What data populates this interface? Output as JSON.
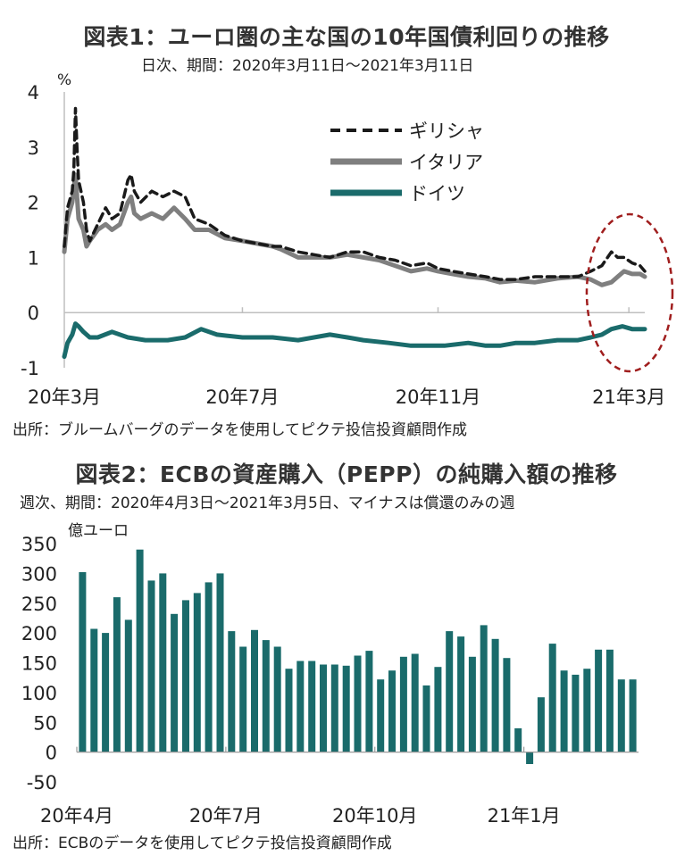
{
  "chart_data": [
    {
      "type": "line",
      "title": "図表1：ユーロ圏の主な国の10年国債利回りの推移",
      "subtitle": "日次、期間：2020年3月11日～2021年3月11日",
      "ylabel": "%",
      "ylim": [
        -1,
        4
      ],
      "yticks": [
        "4",
        "3",
        "2",
        "1",
        "0",
        "-1"
      ],
      "xlim": [
        "2020-03-11",
        "2021-03-11"
      ],
      "xticks": [
        {
          "date": "2020-03-11",
          "label": "20年3月"
        },
        {
          "date": "2020-07-01",
          "label": "20年7月"
        },
        {
          "date": "2020-11-01",
          "label": "20年11月"
        },
        {
          "date": "2021-03-01",
          "label": "21年3月"
        }
      ],
      "legend_position": "top-center",
      "annotation": "highlight-ellipse-around-2021-02-to-03",
      "source": "出所：ブルームバーグのデータを使用してピクテ投信投資顧問作成",
      "series": [
        {
          "name": "ギリシャ",
          "color": "#1a1a1a",
          "style": "dashed",
          "points": [
            [
              "2020-03-11",
              1.2
            ],
            [
              "2020-03-13",
              1.9
            ],
            [
              "2020-03-16",
              2.2
            ],
            [
              "2020-03-17",
              2.6
            ],
            [
              "2020-03-18",
              3.7
            ],
            [
              "2020-03-19",
              3.0
            ],
            [
              "2020-03-20",
              2.4
            ],
            [
              "2020-03-23",
              2.0
            ],
            [
              "2020-03-25",
              1.5
            ],
            [
              "2020-03-27",
              1.3
            ],
            [
              "2020-04-01",
              1.6
            ],
            [
              "2020-04-06",
              1.9
            ],
            [
              "2020-04-10",
              1.7
            ],
            [
              "2020-04-15",
              1.8
            ],
            [
              "2020-04-20",
              2.4
            ],
            [
              "2020-04-22",
              2.5
            ],
            [
              "2020-04-24",
              2.2
            ],
            [
              "2020-04-28",
              2.0
            ],
            [
              "2020-05-05",
              2.2
            ],
            [
              "2020-05-12",
              2.1
            ],
            [
              "2020-05-19",
              2.2
            ],
            [
              "2020-05-26",
              2.1
            ],
            [
              "2020-06-01",
              1.7
            ],
            [
              "2020-06-10",
              1.6
            ],
            [
              "2020-06-20",
              1.4
            ],
            [
              "2020-07-01",
              1.3
            ],
            [
              "2020-07-20",
              1.2
            ],
            [
              "2020-07-25",
              1.2
            ],
            [
              "2020-08-05",
              1.1
            ],
            [
              "2020-08-15",
              1.05
            ],
            [
              "2020-08-25",
              1.0
            ],
            [
              "2020-09-05",
              1.1
            ],
            [
              "2020-09-15",
              1.1
            ],
            [
              "2020-09-25",
              1.0
            ],
            [
              "2020-10-05",
              0.95
            ],
            [
              "2020-10-15",
              0.85
            ],
            [
              "2020-10-25",
              0.9
            ],
            [
              "2020-11-01",
              0.8
            ],
            [
              "2020-11-10",
              0.75
            ],
            [
              "2020-11-20",
              0.7
            ],
            [
              "2020-12-01",
              0.65
            ],
            [
              "2020-12-10",
              0.6
            ],
            [
              "2020-12-20",
              0.6
            ],
            [
              "2021-01-01",
              0.65
            ],
            [
              "2021-01-15",
              0.65
            ],
            [
              "2021-01-28",
              0.65
            ],
            [
              "2021-02-05",
              0.75
            ],
            [
              "2021-02-12",
              0.85
            ],
            [
              "2021-02-18",
              1.1
            ],
            [
              "2021-02-22",
              1.0
            ],
            [
              "2021-02-26",
              1.0
            ],
            [
              "2021-03-03",
              0.9
            ],
            [
              "2021-03-08",
              0.85
            ],
            [
              "2021-03-11",
              0.75
            ]
          ]
        },
        {
          "name": "イタリア",
          "color": "#7f7f7f",
          "style": "solid",
          "points": [
            [
              "2020-03-11",
              1.1
            ],
            [
              "2020-03-13",
              1.7
            ],
            [
              "2020-03-16",
              2.0
            ],
            [
              "2020-03-18",
              2.5
            ],
            [
              "2020-03-20",
              1.7
            ],
            [
              "2020-03-23",
              1.5
            ],
            [
              "2020-03-25",
              1.2
            ],
            [
              "2020-03-27",
              1.3
            ],
            [
              "2020-04-01",
              1.5
            ],
            [
              "2020-04-06",
              1.6
            ],
            [
              "2020-04-10",
              1.5
            ],
            [
              "2020-04-15",
              1.6
            ],
            [
              "2020-04-20",
              2.0
            ],
            [
              "2020-04-22",
              2.1
            ],
            [
              "2020-04-24",
              1.8
            ],
            [
              "2020-04-28",
              1.7
            ],
            [
              "2020-05-05",
              1.8
            ],
            [
              "2020-05-12",
              1.7
            ],
            [
              "2020-05-19",
              1.9
            ],
            [
              "2020-05-26",
              1.7
            ],
            [
              "2020-06-01",
              1.5
            ],
            [
              "2020-06-10",
              1.5
            ],
            [
              "2020-06-20",
              1.35
            ],
            [
              "2020-07-01",
              1.3
            ],
            [
              "2020-07-20",
              1.2
            ],
            [
              "2020-07-25",
              1.15
            ],
            [
              "2020-08-05",
              1.0
            ],
            [
              "2020-08-15",
              1.0
            ],
            [
              "2020-08-25",
              1.0
            ],
            [
              "2020-09-05",
              1.05
            ],
            [
              "2020-09-15",
              1.0
            ],
            [
              "2020-09-25",
              0.95
            ],
            [
              "2020-10-05",
              0.85
            ],
            [
              "2020-10-15",
              0.75
            ],
            [
              "2020-10-25",
              0.8
            ],
            [
              "2020-11-01",
              0.75
            ],
            [
              "2020-11-10",
              0.7
            ],
            [
              "2020-11-20",
              0.65
            ],
            [
              "2020-12-01",
              0.62
            ],
            [
              "2020-12-10",
              0.55
            ],
            [
              "2020-12-20",
              0.58
            ],
            [
              "2021-01-01",
              0.55
            ],
            [
              "2021-01-15",
              0.62
            ],
            [
              "2021-01-28",
              0.65
            ],
            [
              "2021-02-05",
              0.6
            ],
            [
              "2021-02-12",
              0.5
            ],
            [
              "2021-02-18",
              0.55
            ],
            [
              "2021-02-22",
              0.65
            ],
            [
              "2021-02-26",
              0.75
            ],
            [
              "2021-03-03",
              0.7
            ],
            [
              "2021-03-08",
              0.7
            ],
            [
              "2021-03-11",
              0.65
            ]
          ]
        },
        {
          "name": "ドイツ",
          "color": "#1a6b6b",
          "style": "solid",
          "points": [
            [
              "2020-03-11",
              -0.8
            ],
            [
              "2020-03-13",
              -0.55
            ],
            [
              "2020-03-16",
              -0.4
            ],
            [
              "2020-03-18",
              -0.2
            ],
            [
              "2020-03-20",
              -0.25
            ],
            [
              "2020-03-23",
              -0.35
            ],
            [
              "2020-03-27",
              -0.45
            ],
            [
              "2020-04-01",
              -0.45
            ],
            [
              "2020-04-10",
              -0.35
            ],
            [
              "2020-04-20",
              -0.45
            ],
            [
              "2020-05-01",
              -0.5
            ],
            [
              "2020-05-15",
              -0.5
            ],
            [
              "2020-05-26",
              -0.45
            ],
            [
              "2020-06-05",
              -0.3
            ],
            [
              "2020-06-15",
              -0.4
            ],
            [
              "2020-07-01",
              -0.45
            ],
            [
              "2020-07-20",
              -0.45
            ],
            [
              "2020-08-05",
              -0.5
            ],
            [
              "2020-08-15",
              -0.45
            ],
            [
              "2020-08-25",
              -0.4
            ],
            [
              "2020-09-05",
              -0.45
            ],
            [
              "2020-09-15",
              -0.5
            ],
            [
              "2020-10-01",
              -0.55
            ],
            [
              "2020-10-15",
              -0.6
            ],
            [
              "2020-10-25",
              -0.6
            ],
            [
              "2020-11-05",
              -0.6
            ],
            [
              "2020-11-20",
              -0.55
            ],
            [
              "2020-12-01",
              -0.6
            ],
            [
              "2020-12-10",
              -0.6
            ],
            [
              "2020-12-20",
              -0.55
            ],
            [
              "2021-01-01",
              -0.55
            ],
            [
              "2021-01-15",
              -0.5
            ],
            [
              "2021-01-28",
              -0.5
            ],
            [
              "2021-02-05",
              -0.45
            ],
            [
              "2021-02-12",
              -0.4
            ],
            [
              "2021-02-18",
              -0.3
            ],
            [
              "2021-02-25",
              -0.25
            ],
            [
              "2021-03-03",
              -0.3
            ],
            [
              "2021-03-08",
              -0.3
            ],
            [
              "2021-03-11",
              -0.3
            ]
          ]
        }
      ]
    },
    {
      "type": "bar",
      "title": "図表2：ECBの資産購入（PEPP）の純購入額の推移",
      "subtitle_line1": "週次、期間：2020年4月3日～2021年3月5日、マイナスは償還のみの週",
      "subtitle_line2": "億ユーロ",
      "ylim": [
        -50,
        350
      ],
      "yticks": [
        "350",
        "300",
        "250",
        "200",
        "150",
        "100",
        "50",
        "0",
        "-50"
      ],
      "xtick_labels": [
        {
          "index": 0,
          "label": "20年4月"
        },
        {
          "index": 13,
          "label": "20年7月"
        },
        {
          "index": 26,
          "label": "20年10月"
        },
        {
          "index": 39,
          "label": "21年1月"
        }
      ],
      "bar_color": "#1a6b6b",
      "source": "出所：ECBのデータを使用してピクテ投信投資顧問作成",
      "values": [
        302,
        207,
        200,
        260,
        222,
        340,
        288,
        300,
        232,
        255,
        267,
        285,
        300,
        203,
        177,
        205,
        188,
        177,
        140,
        153,
        153,
        147,
        147,
        145,
        162,
        170,
        122,
        137,
        160,
        165,
        112,
        143,
        203,
        194,
        160,
        213,
        190,
        158,
        40,
        -20,
        92,
        182,
        137,
        130,
        140,
        172,
        172,
        122,
        122
      ]
    }
  ]
}
